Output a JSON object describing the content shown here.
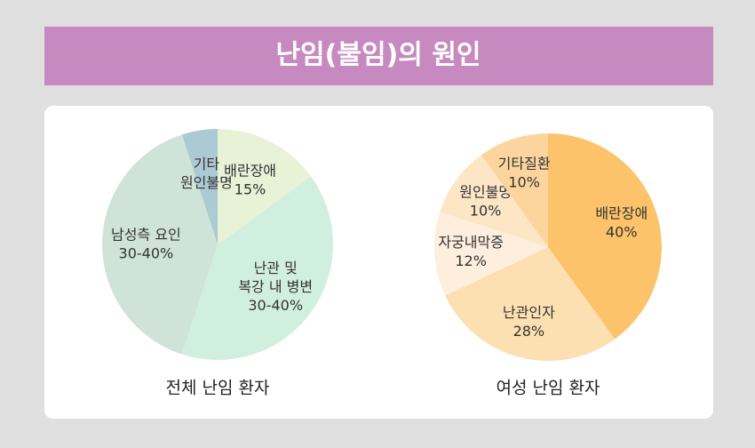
{
  "title": "난임(불임)의 원인",
  "chart_data": [
    {
      "type": "pie",
      "title": "전체 난임 환자",
      "categories": [
        [
          "배란장애"
        ],
        [
          "난관 및",
          "복강 내 병변"
        ],
        [
          "남성측 요인"
        ],
        [
          "기타",
          "원인불명"
        ]
      ],
      "values": [
        15,
        40,
        40,
        5
      ],
      "value_labels": [
        "15%",
        "30-40%",
        "30-40%",
        null
      ],
      "colors": [
        "#e7f2d6",
        "#d1efdf",
        "#cfe3d9",
        "#abcad3"
      ]
    },
    {
      "type": "pie",
      "title": "여성 난임 환자",
      "categories": [
        [
          "배란장애"
        ],
        [
          "난관인자"
        ],
        [
          "자궁내막증"
        ],
        [
          "원인불명"
        ],
        [
          "기타질환"
        ]
      ],
      "values": [
        40,
        28,
        12,
        10,
        10
      ],
      "value_labels": [
        "40%",
        "28%",
        "12%",
        "10%",
        "10%"
      ],
      "colors": [
        "#fcc36b",
        "#fde0b1",
        "#fdeede",
        "#fde6c6",
        "#fcd59e"
      ]
    }
  ]
}
